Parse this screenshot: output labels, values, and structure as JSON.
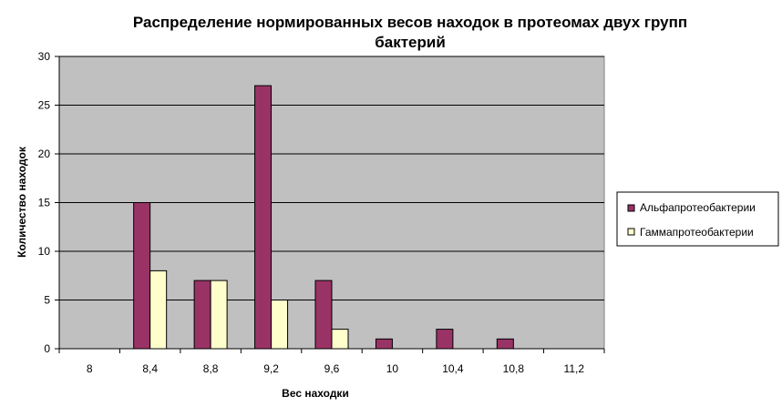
{
  "chart_data": {
    "type": "bar",
    "title_lines": [
      "Распределение нормированных весов находок в протеомах двух групп",
      "бактерий"
    ],
    "xlabel": "Вес находки",
    "ylabel": "Количество находок",
    "categories": [
      "8",
      "8,4",
      "8,8",
      "9,2",
      "9,6",
      "10",
      "10,4",
      "10,8",
      "11,2"
    ],
    "series": [
      {
        "name": "Альфапротеобактерии",
        "color": "#993366",
        "values": [
          0,
          15,
          7,
          27,
          7,
          1,
          2,
          1,
          0
        ]
      },
      {
        "name": "Гаммапротеобактерии",
        "color": "#ffffcc",
        "values": [
          0,
          8,
          7,
          5,
          2,
          0,
          0,
          0,
          0
        ]
      }
    ],
    "ylim": [
      0,
      30
    ],
    "yticks": [
      0,
      5,
      10,
      15,
      20,
      25,
      30
    ],
    "grid": true,
    "plot_background": "#c0c0c0",
    "legend_position": "right"
  }
}
